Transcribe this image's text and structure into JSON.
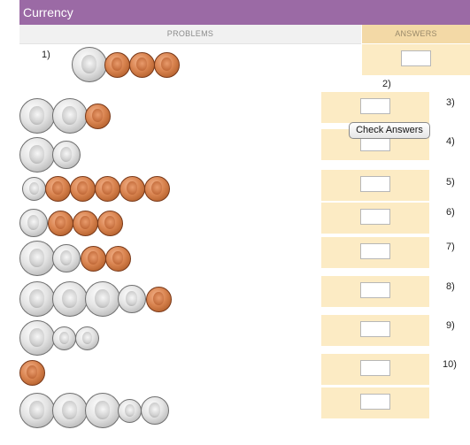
{
  "title": "Currency",
  "headers": {
    "problems": "PROBLEMS",
    "answers": "ANSWERS"
  },
  "check_button": "Check Answers",
  "numbers": [
    "1)",
    "2)",
    "3)",
    "4)",
    "5)",
    "6)",
    "7)",
    "8)",
    "9)",
    "10)"
  ],
  "problems": [
    {
      "coins": [
        "quarter",
        "penny",
        "penny",
        "penny"
      ]
    },
    {
      "coins": [
        "quarter",
        "quarter",
        "penny"
      ]
    },
    {
      "coins": [
        "quarter",
        "nickel"
      ]
    },
    {
      "coins": [
        "dime",
        "penny",
        "penny",
        "penny",
        "penny",
        "penny"
      ]
    },
    {
      "coins": [
        "nickel",
        "penny",
        "penny",
        "penny"
      ]
    },
    {
      "coins": [
        "quarter",
        "nickel",
        "penny",
        "penny"
      ]
    },
    {
      "coins": [
        "quarter",
        "quarter",
        "quarter",
        "nickel",
        "penny"
      ]
    },
    {
      "coins": [
        "quarter",
        "dime",
        "dime"
      ]
    },
    {
      "coins": [
        "penny"
      ]
    },
    {
      "coins": [
        "quarter",
        "quarter",
        "quarter",
        "dime",
        "nickel"
      ]
    }
  ],
  "answers": [
    "",
    "",
    "",
    "",
    "",
    "",
    "",
    "",
    "",
    ""
  ]
}
